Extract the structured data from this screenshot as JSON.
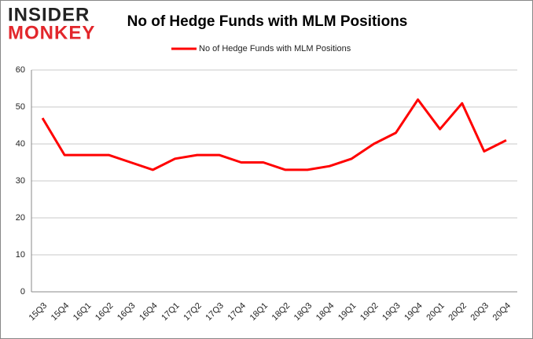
{
  "logo": {
    "top": "INSIDER",
    "bottom": "MONKEY"
  },
  "chart_data": {
    "type": "line",
    "title": "No of Hedge Funds with MLM Positions",
    "categories": [
      "15Q3",
      "15Q4",
      "16Q1",
      "16Q2",
      "16Q3",
      "16Q4",
      "17Q1",
      "17Q2",
      "17Q3",
      "17Q4",
      "18Q1",
      "18Q2",
      "18Q3",
      "18Q4",
      "19Q1",
      "19Q2",
      "19Q3",
      "19Q4",
      "20Q1",
      "20Q2",
      "20Q3",
      "20Q4"
    ],
    "series": [
      {
        "name": "No of Hedge Funds with MLM Positions",
        "color": "#ff0000",
        "values": [
          47,
          37,
          37,
          37,
          35,
          33,
          36,
          37,
          37,
          35,
          35,
          33,
          33,
          34,
          36,
          40,
          43,
          52,
          44,
          51,
          38,
          41
        ]
      }
    ],
    "ylim": [
      0,
      60
    ],
    "yticks": [
      0,
      10,
      20,
      30,
      40,
      50,
      60
    ],
    "grid": true,
    "legend": "top"
  }
}
